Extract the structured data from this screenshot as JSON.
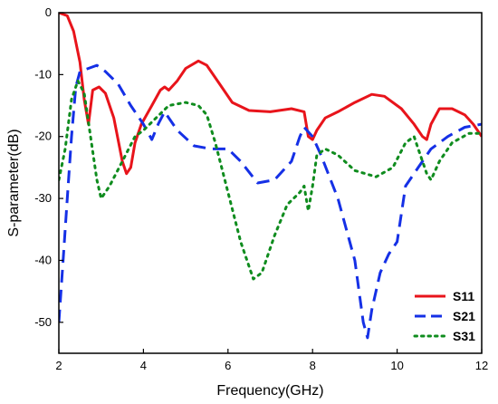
{
  "chart_data": {
    "type": "line",
    "title": "",
    "xlabel": "Frequency(GHz)",
    "ylabel": "S-parameter(dB)",
    "xlim": [
      2,
      12
    ],
    "ylim": [
      -55,
      0
    ],
    "xticks": [
      2,
      4,
      6,
      8,
      10,
      12
    ],
    "yticks": [
      0,
      -10,
      -20,
      -30,
      -40,
      -50
    ],
    "grid": false,
    "legend_position": "bottom-right",
    "series": [
      {
        "name": "S11",
        "color": "#e8141b",
        "dash": "solid",
        "points": [
          [
            2,
            0
          ],
          [
            2.2,
            -0.5
          ],
          [
            2.35,
            -3
          ],
          [
            2.5,
            -8
          ],
          [
            2.6,
            -14
          ],
          [
            2.7,
            -18
          ],
          [
            2.8,
            -12.5
          ],
          [
            2.95,
            -12
          ],
          [
            3.1,
            -13
          ],
          [
            3.3,
            -17
          ],
          [
            3.5,
            -24
          ],
          [
            3.6,
            -26
          ],
          [
            3.7,
            -25
          ],
          [
            3.8,
            -21
          ],
          [
            3.95,
            -18
          ],
          [
            4.2,
            -15
          ],
          [
            4.4,
            -12.5
          ],
          [
            4.5,
            -12
          ],
          [
            4.6,
            -12.5
          ],
          [
            4.8,
            -11
          ],
          [
            5.0,
            -9
          ],
          [
            5.3,
            -7.8
          ],
          [
            5.5,
            -8.5
          ],
          [
            5.8,
            -11.5
          ],
          [
            6.1,
            -14.5
          ],
          [
            6.5,
            -15.8
          ],
          [
            7.0,
            -16
          ],
          [
            7.5,
            -15.5
          ],
          [
            7.8,
            -16
          ],
          [
            7.9,
            -20
          ],
          [
            8.0,
            -20.5
          ],
          [
            8.1,
            -19
          ],
          [
            8.3,
            -17
          ],
          [
            8.6,
            -16
          ],
          [
            9.0,
            -14.5
          ],
          [
            9.4,
            -13.2
          ],
          [
            9.7,
            -13.5
          ],
          [
            10.1,
            -15.5
          ],
          [
            10.4,
            -18
          ],
          [
            10.6,
            -20
          ],
          [
            10.7,
            -20.5
          ],
          [
            10.8,
            -18
          ],
          [
            11.0,
            -15.5
          ],
          [
            11.3,
            -15.5
          ],
          [
            11.6,
            -16.5
          ],
          [
            11.8,
            -18
          ],
          [
            12.0,
            -20
          ]
        ]
      },
      {
        "name": "S21",
        "color": "#1530e6",
        "dash": "dashed",
        "points": [
          [
            2,
            -50
          ],
          [
            2.1,
            -40
          ],
          [
            2.2,
            -30
          ],
          [
            2.3,
            -20
          ],
          [
            2.4,
            -12
          ],
          [
            2.5,
            -9.5
          ],
          [
            2.7,
            -9
          ],
          [
            2.9,
            -8.5
          ],
          [
            3.1,
            -9.5
          ],
          [
            3.4,
            -11.5
          ],
          [
            3.7,
            -15
          ],
          [
            4.0,
            -18
          ],
          [
            4.2,
            -20.5
          ],
          [
            4.35,
            -18
          ],
          [
            4.5,
            -16
          ],
          [
            4.8,
            -19
          ],
          [
            5.2,
            -21.5
          ],
          [
            5.6,
            -22
          ],
          [
            6.0,
            -22
          ],
          [
            6.3,
            -24
          ],
          [
            6.7,
            -27.5
          ],
          [
            7.1,
            -27
          ],
          [
            7.5,
            -24
          ],
          [
            7.7,
            -20
          ],
          [
            7.8,
            -18.5
          ],
          [
            8.0,
            -20
          ],
          [
            8.2,
            -23
          ],
          [
            8.6,
            -30
          ],
          [
            9.0,
            -40
          ],
          [
            9.2,
            -50
          ],
          [
            9.3,
            -52.5
          ],
          [
            9.4,
            -48
          ],
          [
            9.6,
            -42
          ],
          [
            9.8,
            -39
          ],
          [
            10.0,
            -37
          ],
          [
            10.2,
            -28
          ],
          [
            10.5,
            -25
          ],
          [
            10.8,
            -22
          ],
          [
            11.2,
            -20
          ],
          [
            11.6,
            -18.5
          ],
          [
            12.0,
            -18
          ]
        ]
      },
      {
        "name": "S31",
        "color": "#0f8c1e",
        "dash": "dotted",
        "points": [
          [
            2,
            -27
          ],
          [
            2.15,
            -22
          ],
          [
            2.3,
            -14
          ],
          [
            2.45,
            -11
          ],
          [
            2.6,
            -13
          ],
          [
            2.75,
            -20
          ],
          [
            2.9,
            -27
          ],
          [
            3.0,
            -30
          ],
          [
            3.2,
            -28
          ],
          [
            3.5,
            -24
          ],
          [
            3.8,
            -20
          ],
          [
            4.0,
            -19
          ],
          [
            4.3,
            -17
          ],
          [
            4.6,
            -15
          ],
          [
            5.0,
            -14.5
          ],
          [
            5.3,
            -15
          ],
          [
            5.5,
            -16.5
          ],
          [
            5.7,
            -21
          ],
          [
            6.0,
            -29
          ],
          [
            6.3,
            -37
          ],
          [
            6.6,
            -43
          ],
          [
            6.8,
            -42
          ],
          [
            7.1,
            -36
          ],
          [
            7.4,
            -31
          ],
          [
            7.7,
            -29
          ],
          [
            7.8,
            -28
          ],
          [
            7.9,
            -32
          ],
          [
            8.0,
            -28
          ],
          [
            8.1,
            -23
          ],
          [
            8.3,
            -22
          ],
          [
            8.6,
            -23
          ],
          [
            9.0,
            -25.5
          ],
          [
            9.5,
            -26.5
          ],
          [
            9.9,
            -25
          ],
          [
            10.2,
            -21
          ],
          [
            10.4,
            -20
          ],
          [
            10.5,
            -22
          ],
          [
            10.7,
            -26
          ],
          [
            10.8,
            -27
          ],
          [
            11.0,
            -24
          ],
          [
            11.3,
            -21
          ],
          [
            11.7,
            -19.5
          ],
          [
            12.0,
            -19.5
          ]
        ]
      }
    ]
  }
}
